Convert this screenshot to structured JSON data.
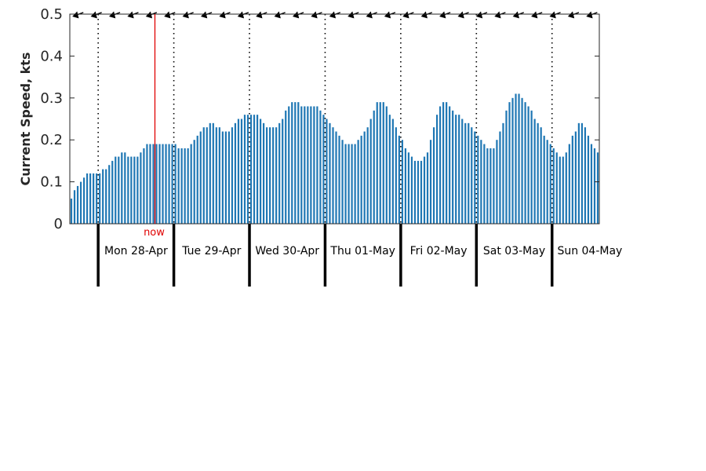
{
  "chart_data": {
    "type": "bar",
    "ylabel": "Current Speed, kts",
    "ylim": [
      0,
      0.5
    ],
    "yticks": [
      "0",
      "0.1",
      "0.2",
      "0.3",
      "0.4",
      "0.5"
    ],
    "y_tick_values": [
      0,
      0.1,
      0.2,
      0.3,
      0.4,
      0.5
    ],
    "grid": false,
    "bar_color": "#1f77b4",
    "now_color": "#e00000",
    "now_label": "now",
    "now_hour": 18,
    "days": [
      "Mon 28-Apr",
      "Tue 29-Apr",
      "Wed 30-Apr",
      "Thu 01-May",
      "Fri 02-May",
      "Sat 03-May",
      "Sun 04-May"
    ],
    "start": "Mon 28-Apr 00:00 minus 9 h",
    "hours_shown": 168,
    "arrow_direction_deg": 300,
    "values": [
      0.06,
      0.08,
      0.09,
      0.1,
      0.11,
      0.12,
      0.12,
      0.12,
      0.12,
      0.12,
      0.13,
      0.13,
      0.14,
      0.15,
      0.16,
      0.16,
      0.17,
      0.17,
      0.16,
      0.16,
      0.16,
      0.16,
      0.17,
      0.18,
      0.19,
      0.19,
      0.19,
      0.19,
      0.19,
      0.19,
      0.19,
      0.19,
      0.19,
      0.19,
      0.18,
      0.18,
      0.18,
      0.18,
      0.19,
      0.2,
      0.21,
      0.22,
      0.23,
      0.23,
      0.24,
      0.24,
      0.23,
      0.23,
      0.22,
      0.22,
      0.22,
      0.23,
      0.24,
      0.25,
      0.25,
      0.26,
      0.26,
      0.26,
      0.26,
      0.26,
      0.25,
      0.24,
      0.23,
      0.23,
      0.23,
      0.23,
      0.24,
      0.25,
      0.27,
      0.28,
      0.29,
      0.29,
      0.29,
      0.28,
      0.28,
      0.28,
      0.28,
      0.28,
      0.28,
      0.27,
      0.26,
      0.25,
      0.24,
      0.23,
      0.22,
      0.21,
      0.2,
      0.19,
      0.19,
      0.19,
      0.19,
      0.2,
      0.21,
      0.22,
      0.23,
      0.25,
      0.27,
      0.29,
      0.29,
      0.29,
      0.28,
      0.26,
      0.25,
      0.23,
      0.21,
      0.2,
      0.18,
      0.17,
      0.16,
      0.15,
      0.15,
      0.15,
      0.16,
      0.17,
      0.2,
      0.23,
      0.26,
      0.28,
      0.29,
      0.29,
      0.28,
      0.27,
      0.26,
      0.26,
      0.25,
      0.24,
      0.24,
      0.23,
      0.22,
      0.21,
      0.2,
      0.19,
      0.18,
      0.18,
      0.18,
      0.2,
      0.22,
      0.24,
      0.27,
      0.29,
      0.3,
      0.31,
      0.31,
      0.3,
      0.29,
      0.28,
      0.27,
      0.25,
      0.24,
      0.23,
      0.21,
      0.2,
      0.19,
      0.18,
      0.17,
      0.16,
      0.16,
      0.17,
      0.19,
      0.21,
      0.22,
      0.24,
      0.24,
      0.23,
      0.21,
      0.19,
      0.18,
      0.17
    ]
  }
}
